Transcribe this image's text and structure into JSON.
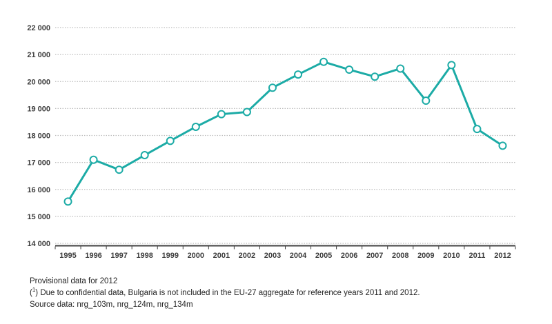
{
  "chart_data": {
    "type": "line",
    "title": "",
    "xlabel": "",
    "ylabel": "",
    "x": [
      1995,
      1996,
      1997,
      1998,
      1999,
      2000,
      2001,
      2002,
      2003,
      2004,
      2005,
      2006,
      2007,
      2008,
      2009,
      2010,
      2011,
      2012
    ],
    "series": [
      {
        "name": "EU-27 aggregate",
        "values": [
          15550,
          17100,
          16730,
          17270,
          17800,
          18320,
          18790,
          18870,
          19770,
          20260,
          20730,
          20440,
          20180,
          20480,
          19290,
          20610,
          18240,
          17620
        ]
      }
    ],
    "ylim": [
      14000,
      22000
    ],
    "ytick_step": 1000,
    "ytick_labels": [
      "14 000",
      "15 000",
      "16 000",
      "17 000",
      "18 000",
      "19 000",
      "20 000",
      "21 000",
      "22 000"
    ],
    "grid": "horizontal dotted",
    "legend": "none",
    "line_color": "#1caba6",
    "marker_fill": "#ffffff",
    "grid_color": "#bdbdbd",
    "axis_color": "#404040",
    "tick_label_color": "#3d3d3d"
  },
  "footer": {
    "line1": "Provisional data for 2012",
    "line2_prefix": "(",
    "line2_sup": "1",
    "line2_rest": ") Due to confidential data, Bulgaria is not included in the EU-27 aggregate for reference years 2011 and 2012.",
    "line3": "Source data: nrg_103m, nrg_124m, nrg_134m"
  }
}
